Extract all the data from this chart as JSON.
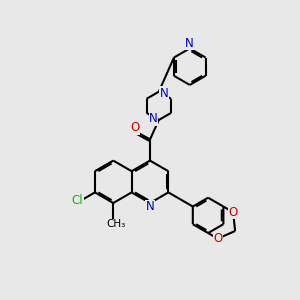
{
  "bg_color": "#e8e8e8",
  "bond_color": "#000000",
  "n_color": "#0000cc",
  "o_color": "#cc0000",
  "cl_color": "#22aa22",
  "line_width": 1.5,
  "dbo": 0.055,
  "xlim": [
    0,
    10
  ],
  "ylim": [
    0,
    10
  ]
}
